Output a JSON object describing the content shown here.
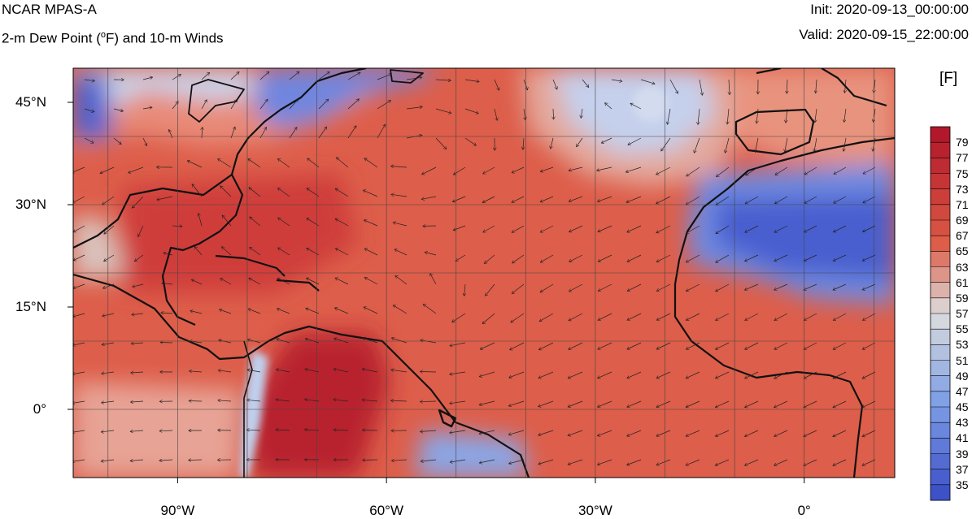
{
  "header": {
    "title_left": "NCAR MPAS-A",
    "subtitle_left_prefix": "2-m Dew Point (",
    "subtitle_left_sup": "o",
    "subtitle_left_suffix": "F) and 10-m Winds",
    "title_right": "Init: 2020-09-13_00:00:00",
    "subtitle_right": "Valid: 2020-09-15_22:00:00"
  },
  "map": {
    "projection": "cylindrical equidistant",
    "lon_range": [
      -105,
      13
    ],
    "lat_range": [
      -10,
      50
    ],
    "gridlines": true,
    "lat_ticks": [
      {
        "value": 45,
        "label": "45°N"
      },
      {
        "value": 30,
        "label": "30°N"
      },
      {
        "value": 15,
        "label": "15°N"
      },
      {
        "value": 0,
        "label": "0°"
      }
    ],
    "lon_ticks": [
      {
        "value": -90,
        "label": "90°W"
      },
      {
        "value": -60,
        "label": "60°W"
      },
      {
        "value": -30,
        "label": "30°W"
      },
      {
        "value": 0,
        "label": "0°"
      }
    ],
    "field": "2-m dew point",
    "vectors": "10-m winds"
  },
  "colorbar": {
    "units": "[F]",
    "labels": [
      "79",
      "77",
      "75",
      "73",
      "71",
      "69",
      "67",
      "65",
      "63",
      "61",
      "59",
      "57",
      "55",
      "53",
      "51",
      "49",
      "47",
      "45",
      "43",
      "41",
      "39",
      "37",
      "35"
    ],
    "colors": {
      "top": "#b2182b",
      "warm": "#dd5a45",
      "neutral": "#dcdcdc",
      "cool": "#7d9ee6",
      "bottom": "#3e52c8"
    }
  }
}
